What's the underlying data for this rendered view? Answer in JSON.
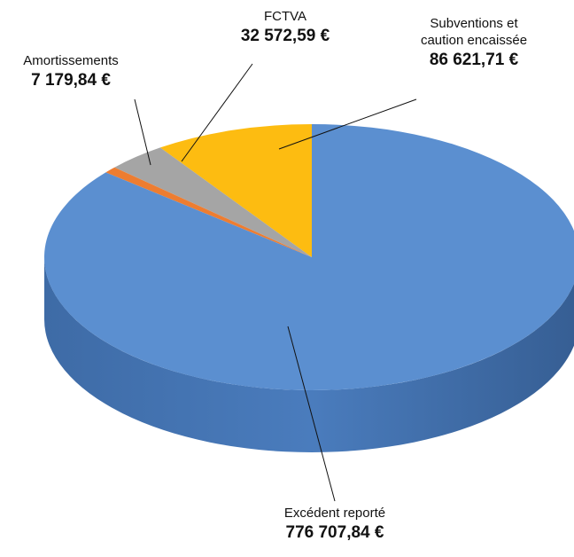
{
  "chart_data": {
    "type": "pie3d",
    "categories": [
      "Subventions et caution encaissée",
      "FCTVA",
      "Amortissements",
      "Excédent reporté"
    ],
    "values": [
      86621.71,
      32572.59,
      7179.84,
      776707.84
    ],
    "value_labels": [
      "86 621,71 €",
      "32 572,59 €",
      "7 179,84 €",
      "776 707,84 €"
    ],
    "colors": [
      "#fdbc11",
      "#a5a5a5",
      "#ed7d31",
      "#5b8fd0"
    ]
  }
}
